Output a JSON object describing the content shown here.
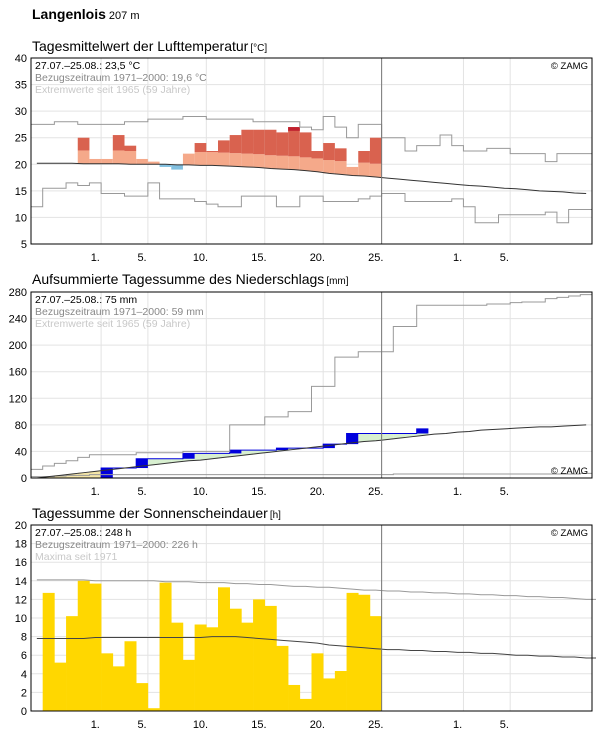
{
  "station": {
    "name": "Langenlois",
    "altitude": "207 m"
  },
  "chart_data": [
    {
      "type": "bar",
      "title": "Tagesmittelwert der Lufttemperatur",
      "unit": "[°C]",
      "info_lines": [
        "27.07.–25.08.: 23,5 °C",
        "Bezugszeitraum 1971–2000: 19,6 °C",
        "Extremwerte seit 1965 (59 Jahre)"
      ],
      "copyright": "© ZAMG",
      "ylim": [
        5,
        40
      ],
      "y_ticks": [
        "5",
        "10",
        "15",
        "20",
        "25",
        "30",
        "35",
        "40"
      ],
      "x_ticks": [
        "1.",
        "5.",
        "10.",
        "15.",
        "20.",
        "25.",
        "1.",
        "5."
      ],
      "x_tick_days": [
        6,
        10,
        15,
        20,
        25,
        30,
        37,
        41
      ],
      "values": [
        25.0,
        21.0,
        21.0,
        25.5,
        23.5,
        21.0,
        20.5,
        19.5,
        19.0,
        22.0,
        24.0,
        22.5,
        24.5,
        25.5,
        26.5,
        26.5,
        26.5,
        26.0,
        27.0,
        26.0,
        22.5,
        24.0,
        23.0,
        19.5,
        22.5,
        25.0
      ],
      "normal": [
        20.2,
        20.2,
        20.2,
        20.2,
        20.1,
        20.1,
        20.1,
        20.1,
        20.0,
        20.0,
        20.0,
        20.0,
        19.9,
        19.9,
        19.8,
        19.8,
        19.7,
        19.6,
        19.5,
        19.4,
        19.2,
        19.1,
        19.0,
        18.8,
        18.6,
        18.3,
        18.1,
        17.9,
        17.8,
        17.6,
        17.4,
        17.2,
        17.0,
        16.8,
        16.6,
        16.4,
        16.2,
        16.0,
        15.9,
        15.7,
        15.5,
        15.4,
        15.2,
        15.0,
        14.9,
        14.8,
        14.6,
        14.5
      ],
      "max_extreme": [
        27.5,
        27.5,
        28.0,
        28.0,
        27.5,
        27.5,
        27.5,
        27.5,
        28.0,
        28.0,
        28.5,
        28.5,
        28.5,
        29.0,
        29.0,
        28.5,
        28.5,
        28.5,
        28.5,
        28.0,
        28.0,
        28.0,
        28.0,
        27.0,
        26.5,
        29.0,
        27.0,
        25.0,
        27.5,
        27.5,
        25.0,
        25.0,
        22.5,
        23.5,
        23.5,
        25.5,
        23.5,
        22.5,
        22.5,
        23.0,
        23.0,
        22.0,
        22.0,
        22.0,
        20.5,
        22.0,
        22.0,
        22.0
      ],
      "min_extreme": [
        12.0,
        15.5,
        15.5,
        16.5,
        16.0,
        16.5,
        14.5,
        14.5,
        14.0,
        14.0,
        16.5,
        13.5,
        13.5,
        13.5,
        13.0,
        12.5,
        12.0,
        12.0,
        14.0,
        14.0,
        14.0,
        12.0,
        12.0,
        14.0,
        14.0,
        13.0,
        13.0,
        13.0,
        13.5,
        14.0,
        14.5,
        14.5,
        13.0,
        13.0,
        13.0,
        13.0,
        13.5,
        12.0,
        9.0,
        9.0,
        10.5,
        10.5,
        10.5,
        10.5,
        11.0,
        9.0,
        11.5,
        11.5
      ],
      "colors": {
        "warm": "#d9624f",
        "warm_light": "#f5a98a",
        "record_hot": "#c0202e",
        "cool": "#82c0e0",
        "normal": "#333333",
        "extreme": "#999999",
        "today": "#777777"
      }
    },
    {
      "type": "area",
      "title": "Aufsummierte Tagessumme des Niederschlags",
      "unit": "[mm]",
      "info_lines": [
        "27.07.–25.08.: 75 mm",
        "Bezugszeitraum 1971–2000: 59 mm",
        "Extremwerte seit 1965 (59 Jahre)"
      ],
      "copyright": "© ZAMG",
      "ylim": [
        0,
        280
      ],
      "y_ticks": [
        "0",
        "40",
        "80",
        "120",
        "160",
        "200",
        "240",
        "280"
      ],
      "x_ticks": [
        "1.",
        "5.",
        "10.",
        "15.",
        "20.",
        "25.",
        "1.",
        "5."
      ],
      "x_tick_days": [
        6,
        10,
        15,
        20,
        25,
        30,
        37,
        41
      ],
      "cumulative": [
        0,
        0,
        0,
        0,
        0,
        0,
        15,
        15,
        15,
        29,
        29,
        29,
        29,
        37,
        37,
        37,
        37,
        42,
        42,
        42,
        42,
        45,
        45,
        45,
        45,
        51,
        51,
        67,
        67,
        67,
        67,
        67,
        67,
        74
      ],
      "normal": [
        0,
        2,
        4,
        6,
        8,
        10,
        12,
        14,
        16,
        18,
        20,
        22,
        24,
        26,
        27,
        29,
        31,
        33,
        35,
        37,
        39,
        41,
        43,
        45,
        47,
        49,
        51,
        53,
        55,
        56,
        58,
        60,
        62,
        64,
        66,
        67,
        69,
        70,
        72,
        73,
        74,
        75,
        76,
        77,
        77,
        78,
        79,
        80
      ],
      "max_extreme": [
        13,
        18,
        22,
        26,
        31,
        35,
        35,
        35,
        35,
        38,
        38,
        38,
        38,
        40,
        40,
        40,
        40,
        80,
        80,
        80,
        92,
        92,
        100,
        100,
        138,
        138,
        182,
        182,
        190,
        190,
        190,
        228,
        228,
        260,
        260,
        260,
        260,
        260,
        260,
        262,
        262,
        264,
        265,
        265,
        270,
        272,
        274,
        276
      ],
      "min_extreme": [
        2,
        2,
        3,
        4,
        4,
        5,
        5,
        5,
        5,
        5,
        5,
        5,
        5,
        5,
        5,
        5,
        5,
        5,
        5,
        5,
        5,
        5,
        5,
        5,
        5,
        5,
        5,
        5,
        5,
        5,
        5,
        6,
        6,
        6,
        6,
        6,
        6,
        6,
        6,
        6,
        6,
        6,
        6,
        6,
        6,
        6,
        6,
        7
      ],
      "colors": {
        "above_normal": "#d8f0d0",
        "below_normal": "#f5e6a8",
        "rain": "#0000dd",
        "normal": "#333333",
        "extreme": "#999999",
        "today": "#777777"
      }
    },
    {
      "type": "bar",
      "title": "Tagessumme der Sonnenscheindauer",
      "unit": "[h]",
      "info_lines": [
        "27.07.–25.08.: 248 h",
        "Bezugszeitraum 1971–2000: 226 h",
        "Maxima seit 1971"
      ],
      "copyright": "© ZAMG",
      "ylim": [
        0,
        20
      ],
      "y_ticks": [
        "0",
        "2",
        "4",
        "6",
        "8",
        "10",
        "12",
        "14",
        "16",
        "18",
        "20"
      ],
      "x_ticks": [
        "1.",
        "5.",
        "10.",
        "15.",
        "20.",
        "25.",
        "1.",
        "5."
      ],
      "x_tick_days": [
        6,
        10,
        15,
        20,
        25,
        30,
        37,
        41
      ],
      "values": [
        12.7,
        5.2,
        10.2,
        14.0,
        13.7,
        6.2,
        4.8,
        7.5,
        3.0,
        0.3,
        13.8,
        9.5,
        5.5,
        9.3,
        9.0,
        13.3,
        11.0,
        9.5,
        12.0,
        11.3,
        7.0,
        2.8,
        1.3,
        6.2,
        3.5,
        4.3,
        12.7,
        12.5,
        10.2
      ],
      "normal": [
        7.8,
        7.8,
        7.8,
        7.8,
        7.8,
        7.9,
        7.9,
        7.9,
        7.9,
        7.9,
        7.9,
        7.9,
        7.9,
        7.9,
        7.9,
        8.0,
        8.0,
        8.0,
        7.9,
        7.8,
        7.7,
        7.6,
        7.5,
        7.4,
        7.3,
        7.1,
        7.0,
        6.9,
        6.8,
        6.7,
        6.6,
        6.6,
        6.5,
        6.5,
        6.4,
        6.4,
        6.3,
        6.3,
        6.2,
        6.2,
        6.1,
        6.0,
        6.0,
        5.9,
        5.9,
        5.8,
        5.8,
        5.7,
        5.7
      ],
      "maxima": [
        14.1,
        14.1,
        14.1,
        14.1,
        14.1,
        14.0,
        14.0,
        14.0,
        14.0,
        14.0,
        14.0,
        13.9,
        13.9,
        13.9,
        13.8,
        13.8,
        13.8,
        13.7,
        13.7,
        13.6,
        13.6,
        13.5,
        13.4,
        13.4,
        13.3,
        13.3,
        13.2,
        13.1,
        13.0,
        13.0,
        12.9,
        12.9,
        12.8,
        12.8,
        12.7,
        12.7,
        12.6,
        12.6,
        12.5,
        12.5,
        12.4,
        12.4,
        12.3,
        12.3,
        12.2,
        12.2,
        12.1,
        12.0,
        12.0
      ],
      "colors": {
        "sun": "#ffd700",
        "normal": "#444444",
        "maxima": "#999999",
        "today": "#777777"
      }
    }
  ]
}
